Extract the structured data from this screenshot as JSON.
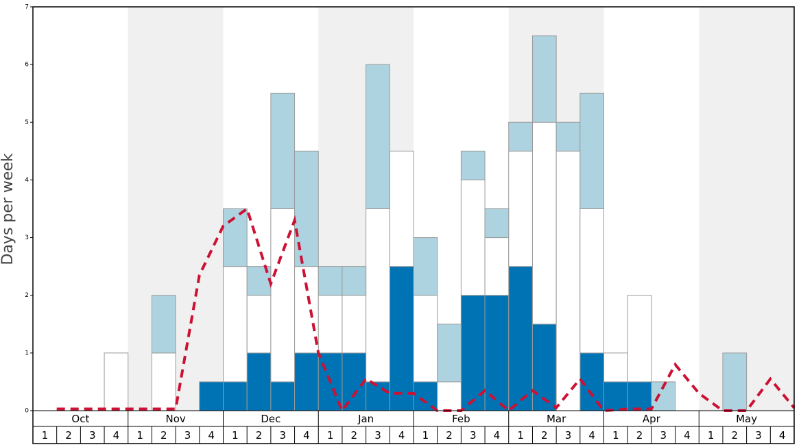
{
  "chart_data": {
    "type": "bar",
    "y_label": "Days per week",
    "months": [
      "Oct",
      "Nov",
      "Dec",
      "Jan",
      "Feb",
      "Mar",
      "Apr",
      "May"
    ],
    "categories": [
      "1",
      "2",
      "3",
      "4",
      "1",
      "2",
      "3",
      "4",
      "1",
      "2",
      "3",
      "4",
      "1",
      "2",
      "3",
      "4",
      "1",
      "2",
      "3",
      "4",
      "1",
      "2",
      "3",
      "4",
      "1",
      "2",
      "3",
      "4",
      "1",
      "2",
      "3",
      "4"
    ],
    "stacked": true,
    "series": [
      {
        "color": "#0073b5",
        "values": [
          0,
          0,
          0,
          0,
          0,
          0,
          0,
          0.5,
          0.5,
          1,
          0.5,
          1,
          1,
          1,
          0.5,
          2.5,
          0.5,
          0,
          2,
          2,
          2.5,
          1.5,
          0,
          1,
          0.5,
          0.5,
          0,
          0,
          0,
          0,
          0,
          0
        ]
      },
      {
        "color": "#ffffff",
        "values": [
          0,
          0,
          0,
          1,
          0,
          1,
          0,
          0,
          2,
          1,
          3,
          1.5,
          1,
          1,
          3,
          2,
          1.5,
          0.5,
          2,
          1,
          2,
          3.5,
          4.5,
          2.5,
          0.5,
          1.5,
          0,
          0,
          0,
          0,
          0,
          0
        ]
      },
      {
        "color": "#aed3e0",
        "values": [
          0,
          0,
          0,
          0,
          0,
          1,
          0,
          0,
          1,
          0.5,
          2,
          2,
          0.5,
          0.5,
          2.5,
          0,
          1,
          1,
          0.5,
          0.5,
          0.5,
          1.5,
          0.5,
          2,
          0,
          0,
          0.5,
          0,
          0,
          1,
          0,
          0
        ]
      },
      {
        "type": "line",
        "color": "#cc1133",
        "values": [
          0.03,
          0.03,
          0.03,
          0.03,
          0.03,
          0.03,
          2.35,
          3.2,
          3.5,
          2.2,
          3.3,
          1.0,
          0,
          0.55,
          0.3,
          0.3,
          0,
          0,
          0.35,
          0,
          0.35,
          0.05,
          0.55,
          0,
          0.03,
          0.03,
          0.8,
          0.3,
          0,
          0,
          0.55,
          0.05
        ]
      }
    ],
    "ylim": [
      0,
      7
    ],
    "yticks": [
      0,
      1,
      2,
      3,
      4,
      5,
      6,
      7
    ],
    "shade_color": "#f0f0f0"
  }
}
